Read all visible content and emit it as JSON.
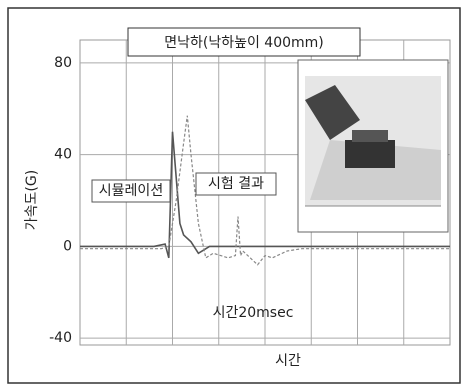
{
  "chart_data": {
    "type": "line",
    "title": "면낙하(낙하높이 400mm)",
    "y_label": "가속도(G)",
    "x_label": "시간",
    "annotations": [
      "시뮬레이션",
      "시험 결과",
      "시간20msec"
    ],
    "xlim": [
      0,
      100
    ],
    "ylim": [
      -43,
      90
    ],
    "yticks": [
      -40,
      0,
      40,
      80
    ],
    "grid": true,
    "series": [
      {
        "name": "시뮬레이션",
        "color": "#555555",
        "x": [
          0,
          20,
          23,
          24,
          25,
          26,
          27,
          28,
          30,
          32,
          35,
          40,
          100
        ],
        "values": [
          0,
          0,
          1,
          -5,
          50,
          30,
          10,
          5,
          2,
          -3,
          0,
          0,
          0
        ]
      },
      {
        "name": "시험 결과",
        "color": "#888888",
        "x": [
          0,
          22,
          24,
          26,
          28,
          29,
          30,
          32,
          34,
          36,
          40,
          42,
          42.7,
          43.4,
          44,
          48,
          50,
          52,
          56,
          60,
          100
        ],
        "values": [
          -1,
          -1,
          0,
          20,
          45,
          57,
          40,
          10,
          -5,
          -3,
          -5,
          -4,
          13,
          -4,
          -2,
          -8,
          -4,
          -5,
          -2,
          -1,
          -1
        ]
      }
    ]
  }
}
